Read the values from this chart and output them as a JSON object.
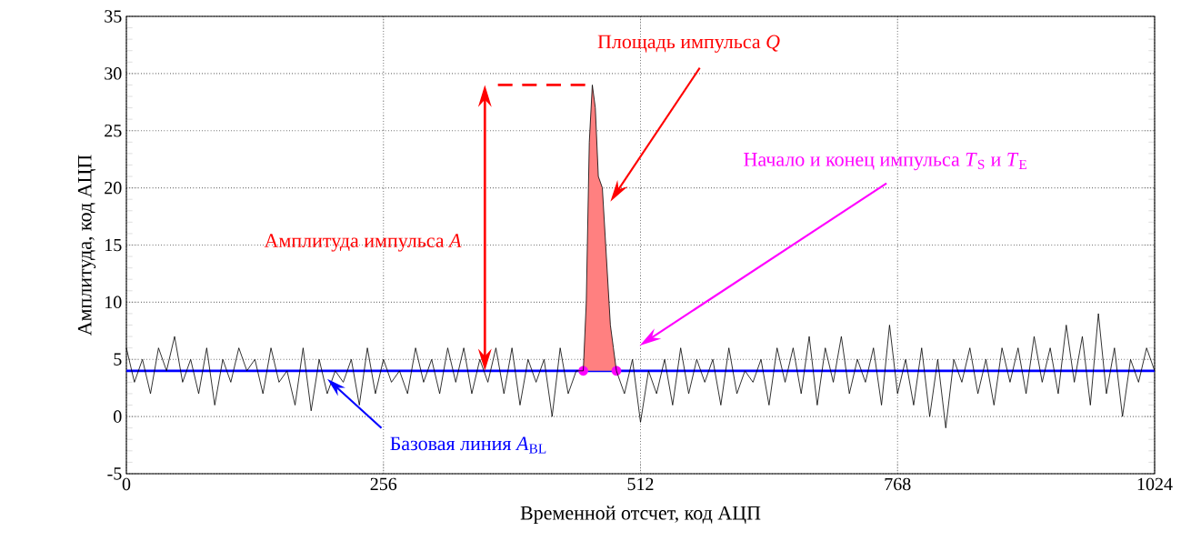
{
  "chart_data": {
    "type": "line",
    "xlabel": "Временной отсчет, код АЦП",
    "ylabel": "Амплитуда, код АЦП",
    "xlim": [
      0,
      1024
    ],
    "xticks": [
      0,
      256,
      512,
      768,
      1024
    ],
    "ylim": [
      -5,
      35
    ],
    "yticks": [
      -5,
      0,
      5,
      10,
      15,
      20,
      25,
      30,
      35
    ],
    "grid": true,
    "marker": "none",
    "series": [
      {
        "color": "#000000",
        "x": [
          0,
          8,
          16,
          24,
          32,
          40,
          48,
          56,
          64,
          72,
          80,
          88,
          96,
          104,
          112,
          120,
          128,
          136,
          144,
          152,
          160,
          168,
          176,
          184,
          192,
          200,
          208,
          216,
          224,
          232,
          240,
          248,
          256,
          264,
          272,
          280,
          288,
          296,
          304,
          312,
          320,
          328,
          336,
          344,
          352,
          360,
          368,
          376,
          384,
          392,
          400,
          408,
          416,
          424,
          432,
          440,
          448,
          455,
          458,
          461,
          464,
          467,
          470,
          474,
          478,
          482,
          485,
          488,
          496,
          504,
          512,
          520,
          528,
          536,
          544,
          552,
          560,
          568,
          576,
          584,
          592,
          600,
          608,
          616,
          624,
          632,
          640,
          648,
          656,
          664,
          672,
          680,
          688,
          696,
          704,
          712,
          720,
          728,
          736,
          744,
          752,
          760,
          768,
          776,
          784,
          792,
          800,
          808,
          816,
          824,
          832,
          840,
          848,
          856,
          864,
          872,
          880,
          888,
          896,
          904,
          912,
          920,
          928,
          936,
          944,
          952,
          960,
          968,
          976,
          984,
          992,
          1000,
          1008,
          1016,
          1024
        ],
        "values": [
          6,
          3,
          5,
          2,
          6,
          4,
          7,
          3,
          5,
          2,
          6,
          1,
          5,
          3,
          6,
          4,
          5,
          2,
          6,
          3,
          4,
          1,
          6,
          0.5,
          5,
          2,
          4,
          3,
          5,
          1,
          6,
          2,
          5,
          3,
          4,
          2,
          6,
          3,
          5,
          2,
          6,
          3,
          6,
          2,
          5,
          3,
          6,
          2,
          6,
          1,
          5,
          3,
          5,
          0,
          6,
          2,
          4,
          4,
          10,
          24,
          29,
          27,
          21,
          20,
          14,
          8,
          6,
          4,
          2,
          5,
          -0.5,
          4,
          2,
          5,
          1,
          6,
          2,
          5,
          3,
          5,
          1,
          6,
          2,
          4,
          3,
          5,
          1,
          6,
          3,
          6,
          2,
          7,
          1,
          6,
          3,
          7,
          2,
          5,
          3,
          6,
          1,
          8,
          2,
          5,
          1,
          6,
          0,
          5,
          -1,
          5,
          3,
          6,
          2,
          5,
          1,
          6,
          3,
          6,
          2,
          7,
          3,
          6,
          2,
          8,
          3,
          7,
          1,
          9,
          2,
          6,
          0,
          5,
          3,
          6,
          4
        ]
      },
      {
        "type": "area",
        "color": "#ff8080",
        "x": [
          455,
          458,
          461,
          464,
          467,
          470,
          474,
          478,
          482,
          485,
          488
        ],
        "values": [
          4,
          10,
          24,
          29,
          27,
          21,
          20,
          14,
          8,
          6,
          4
        ]
      },
      {
        "type": "scatter",
        "color": "#ff00ff",
        "marker": "circle",
        "x": [
          455,
          488
        ],
        "values": [
          4,
          4
        ]
      }
    ],
    "ref_lines": [
      {
        "axis": "y",
        "value": 4,
        "label": "Базовая линия *A*$_{BL}$",
        "color": "#0000ff"
      },
      {
        "axis": "y",
        "value": 29,
        "color": "#ff0000",
        "line_style": "dashed"
      }
    ],
    "annotations": [
      "Площадь импульса *Q*",
      "Амплитуда импульса *A*",
      "Начало и конец импульса *T*$_{S}$ и *T*$_{E}$"
    ]
  }
}
